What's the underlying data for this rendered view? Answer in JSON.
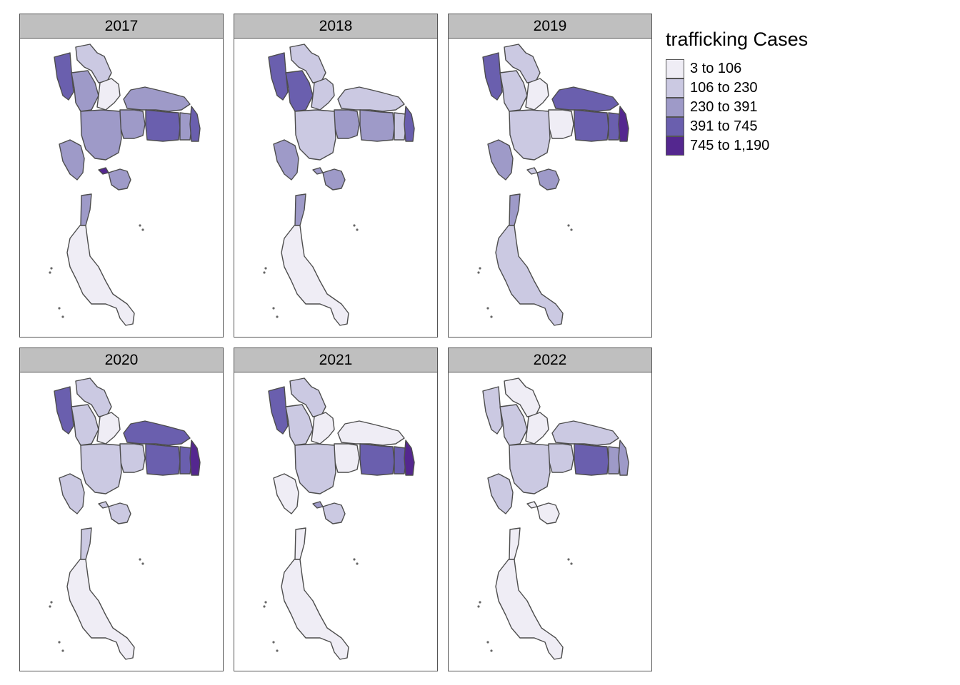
{
  "legend": {
    "title": "trafficking Cases",
    "classes": [
      {
        "label": "3 to 106",
        "color": "#efedf5"
      },
      {
        "label": "106 to 230",
        "color": "#cbc9e2"
      },
      {
        "label": "230 to 391",
        "color": "#9e9ac8"
      },
      {
        "label": "391 to 745",
        "color": "#6a5fae"
      },
      {
        "label": "745 to 1,190",
        "color": "#54278f"
      }
    ]
  },
  "panels": [
    {
      "title": "2017",
      "levels": {
        "nw": 3,
        "n1": 1,
        "n2": 2,
        "n3": 0,
        "ne_top": 2,
        "ne1": 2,
        "ne2": 3,
        "ne3": 2,
        "ne_far": 3,
        "central": 2,
        "west": 2,
        "bkk": 4,
        "east": 2,
        "south_top": 2,
        "south": 0
      }
    },
    {
      "title": "2018",
      "levels": {
        "nw": 3,
        "n1": 1,
        "n2": 3,
        "n3": 1,
        "ne_top": 1,
        "ne1": 2,
        "ne2": 2,
        "ne3": 1,
        "ne_far": 3,
        "central": 1,
        "west": 2,
        "bkk": 2,
        "east": 2,
        "south_top": 2,
        "south": 0
      }
    },
    {
      "title": "2019",
      "levels": {
        "nw": 3,
        "n1": 1,
        "n2": 1,
        "n3": 0,
        "ne_top": 3,
        "ne1": 0,
        "ne2": 3,
        "ne3": 3,
        "ne_far": 4,
        "central": 1,
        "west": 2,
        "bkk": 1,
        "east": 2,
        "south_top": 2,
        "south": 1
      }
    },
    {
      "title": "2020",
      "levels": {
        "nw": 3,
        "n1": 1,
        "n2": 1,
        "n3": 0,
        "ne_top": 3,
        "ne1": 1,
        "ne2": 3,
        "ne3": 3,
        "ne_far": 4,
        "central": 1,
        "west": 1,
        "bkk": 1,
        "east": 1,
        "south_top": 1,
        "south": 0
      }
    },
    {
      "title": "2021",
      "levels": {
        "nw": 3,
        "n1": 1,
        "n2": 1,
        "n3": 0,
        "ne_top": 0,
        "ne1": 0,
        "ne2": 3,
        "ne3": 3,
        "ne_far": 4,
        "central": 1,
        "west": 0,
        "bkk": 2,
        "east": 1,
        "south_top": 0,
        "south": 0
      }
    },
    {
      "title": "2022",
      "levels": {
        "nw": 1,
        "n1": 0,
        "n2": 1,
        "n3": 0,
        "ne_top": 1,
        "ne1": 1,
        "ne2": 3,
        "ne3": 2,
        "ne_far": 2,
        "central": 1,
        "west": 1,
        "bkk": 0,
        "east": 0,
        "south_top": 0,
        "south": 0
      }
    }
  ]
}
